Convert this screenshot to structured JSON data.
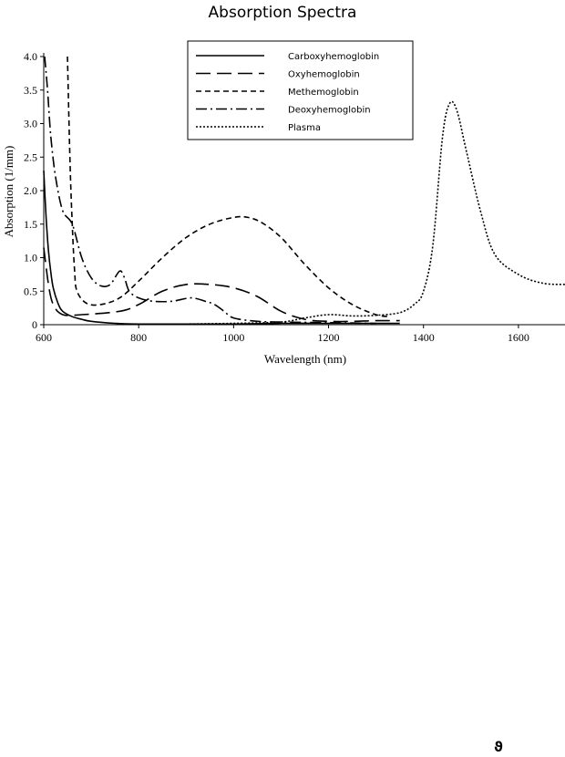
{
  "chart_data": {
    "type": "line",
    "title": "Absorption Spectra",
    "xlabel": "Wavelength (nm)",
    "ylabel": "Absorption (1/mm)",
    "xlim": [
      600,
      1700
    ],
    "ylim": [
      0,
      4.0
    ],
    "x_ticks": [
      600,
      800,
      1000,
      1200,
      1400,
      1600
    ],
    "y_ticks": [
      "0",
      "0.5",
      "1.0",
      "1.5",
      "2.0",
      "2.5",
      "3.0",
      "3.5",
      "4.0"
    ],
    "legend_position": "top-center",
    "series": [
      {
        "name": "Carboxyhemoglobin",
        "style": "solid",
        "points": [
          [
            600,
            2.3
          ],
          [
            605,
            1.6
          ],
          [
            610,
            1.1
          ],
          [
            615,
            0.78
          ],
          [
            620,
            0.55
          ],
          [
            630,
            0.32
          ],
          [
            640,
            0.2
          ],
          [
            660,
            0.12
          ],
          [
            680,
            0.08
          ],
          [
            700,
            0.05
          ],
          [
            750,
            0.02
          ],
          [
            800,
            0.01
          ],
          [
            900,
            0.01
          ],
          [
            1000,
            0.01
          ],
          [
            1100,
            0.02
          ],
          [
            1200,
            0.02
          ],
          [
            1300,
            0.02
          ],
          [
            1350,
            0.02
          ]
        ]
      },
      {
        "name": "Oxyhemoglobin",
        "style": "long-dash",
        "points": [
          [
            600,
            1.15
          ],
          [
            610,
            0.6
          ],
          [
            620,
            0.3
          ],
          [
            640,
            0.15
          ],
          [
            680,
            0.15
          ],
          [
            760,
            0.2
          ],
          [
            800,
            0.3
          ],
          [
            850,
            0.5
          ],
          [
            900,
            0.6
          ],
          [
            950,
            0.6
          ],
          [
            1000,
            0.55
          ],
          [
            1050,
            0.42
          ],
          [
            1100,
            0.2
          ],
          [
            1150,
            0.08
          ],
          [
            1200,
            0.05
          ],
          [
            1250,
            0.05
          ],
          [
            1300,
            0.06
          ],
          [
            1350,
            0.06
          ]
        ]
      },
      {
        "name": "Methemoglobin",
        "style": "short-dash",
        "points": [
          [
            650,
            4.0
          ],
          [
            655,
            2.5
          ],
          [
            660,
            1.5
          ],
          [
            665,
            0.8
          ],
          [
            670,
            0.5
          ],
          [
            690,
            0.32
          ],
          [
            720,
            0.3
          ],
          [
            760,
            0.4
          ],
          [
            800,
            0.65
          ],
          [
            850,
            1.0
          ],
          [
            900,
            1.3
          ],
          [
            950,
            1.5
          ],
          [
            1000,
            1.6
          ],
          [
            1030,
            1.6
          ],
          [
            1060,
            1.52
          ],
          [
            1100,
            1.3
          ],
          [
            1150,
            0.9
          ],
          [
            1200,
            0.55
          ],
          [
            1250,
            0.3
          ],
          [
            1300,
            0.15
          ],
          [
            1330,
            0.12
          ]
        ]
      },
      {
        "name": "Deoxyhemoglobin",
        "style": "dash-dot",
        "points": [
          [
            602,
            4.0
          ],
          [
            608,
            3.5
          ],
          [
            615,
            2.8
          ],
          [
            625,
            2.2
          ],
          [
            640,
            1.7
          ],
          [
            660,
            1.5
          ],
          [
            680,
            1.0
          ],
          [
            700,
            0.7
          ],
          [
            720,
            0.58
          ],
          [
            740,
            0.6
          ],
          [
            760,
            0.8
          ],
          [
            770,
            0.7
          ],
          [
            780,
            0.5
          ],
          [
            800,
            0.4
          ],
          [
            830,
            0.35
          ],
          [
            870,
            0.35
          ],
          [
            910,
            0.4
          ],
          [
            940,
            0.35
          ],
          [
            960,
            0.3
          ],
          [
            980,
            0.2
          ],
          [
            1000,
            0.1
          ],
          [
            1050,
            0.05
          ],
          [
            1100,
            0.04
          ],
          [
            1200,
            0.03
          ],
          [
            1300,
            0.02
          ]
        ]
      },
      {
        "name": "Plasma",
        "style": "dotted",
        "points": [
          [
            900,
            0.01
          ],
          [
            1000,
            0.02
          ],
          [
            1100,
            0.04
          ],
          [
            1150,
            0.1
          ],
          [
            1200,
            0.15
          ],
          [
            1250,
            0.13
          ],
          [
            1300,
            0.14
          ],
          [
            1350,
            0.18
          ],
          [
            1380,
            0.3
          ],
          [
            1400,
            0.5
          ],
          [
            1420,
            1.2
          ],
          [
            1440,
            2.8
          ],
          [
            1455,
            3.3
          ],
          [
            1470,
            3.2
          ],
          [
            1490,
            2.6
          ],
          [
            1520,
            1.7
          ],
          [
            1550,
            1.05
          ],
          [
            1600,
            0.75
          ],
          [
            1650,
            0.62
          ],
          [
            1700,
            0.6
          ]
        ]
      }
    ]
  },
  "footer": {
    "mark": "ϑ"
  }
}
